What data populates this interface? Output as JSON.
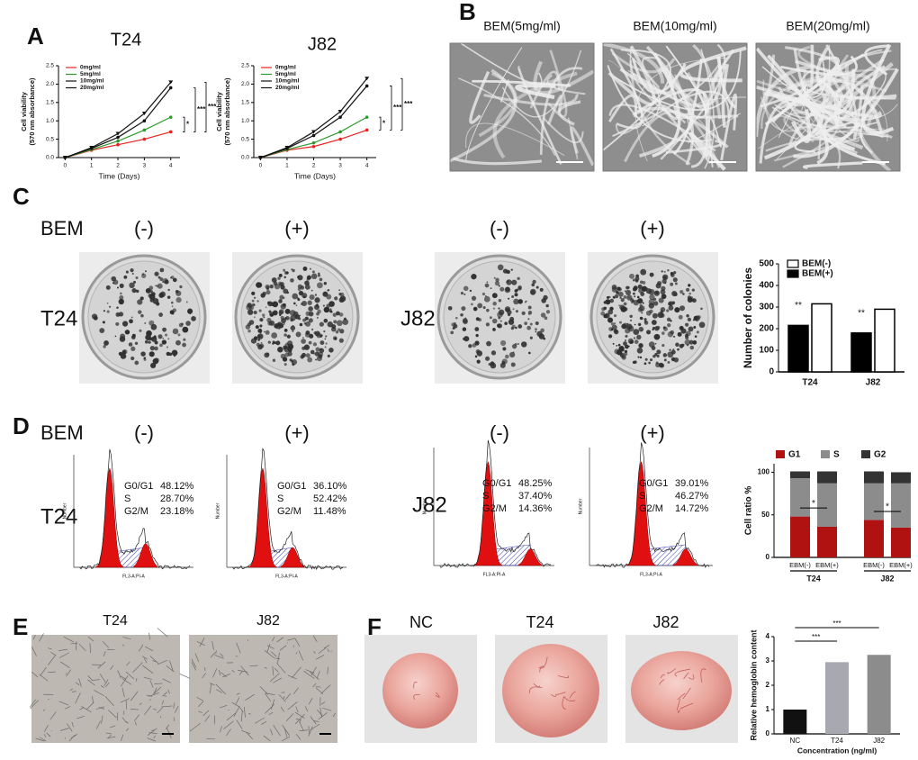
{
  "panels": {
    "letters": [
      "A",
      "B",
      "C",
      "D",
      "E",
      "F"
    ]
  },
  "sem": {
    "labels": [
      "BEM(5mg/ml)",
      "BEM(10mg/ml)",
      "BEM(20mg/ml)"
    ]
  },
  "colony": {
    "row_label": "BEM",
    "conditions": [
      "(-)",
      "(+)",
      "(-)",
      "(+)"
    ],
    "cell_lines": [
      "T24",
      "J82"
    ]
  },
  "flow": {
    "row_label": "BEM",
    "conditions": [
      "(-)",
      "(+)",
      "(-)",
      "(+)"
    ],
    "cell_lines": [
      "T24",
      "J82"
    ],
    "x_label": "FL3-A:PI-A",
    "y_label": "Number",
    "plots": [
      [
        [
          "G0/G1",
          "48.12%"
        ],
        [
          "S",
          "28.70%"
        ],
        [
          "G2/M",
          "23.18%"
        ]
      ],
      [
        [
          "G0/G1",
          "36.10%"
        ],
        [
          "S",
          "52.42%"
        ],
        [
          "G2/M",
          "11.48%"
        ]
      ],
      [
        [
          "G0/G1",
          "48.25%"
        ],
        [
          "S",
          "37.40%"
        ],
        [
          "G2/M",
          "14.36%"
        ]
      ],
      [
        [
          "G0/G1",
          "39.01%"
        ],
        [
          "S",
          "46.27%"
        ],
        [
          "G2/M",
          "14.72%"
        ]
      ]
    ]
  },
  "tube": {
    "labels": [
      "T24",
      "J82"
    ]
  },
  "tissue": {
    "labels": [
      "NC",
      "T24",
      "J82"
    ]
  },
  "chart_data": [
    {
      "type": "line",
      "title": "T24",
      "xlabel": "Time (Days)",
      "ylabel": [
        "Cell viability",
        "(570 nm absorbance)"
      ],
      "x": [
        0,
        1,
        2,
        3,
        4
      ],
      "xlim": [
        -0.25,
        4.35
      ],
      "xticks": [
        0,
        1,
        2,
        3,
        4
      ],
      "ylim": [
        0,
        2.5
      ],
      "yticks": [
        {
          "value": 0,
          "label": "0.0"
        },
        0.5,
        {
          "value": 1,
          "label": "1.0"
        },
        1.5,
        {
          "value": 2,
          "label": "2.0"
        },
        2.5
      ],
      "series": [
        {
          "name": "0mg/ml",
          "color": "#e8221d",
          "values": [
            0,
            0.2,
            0.35,
            0.5,
            0.7
          ]
        },
        {
          "name": "5mg/ml",
          "color": "#2e9a2e",
          "values": [
            0,
            0.22,
            0.45,
            0.75,
            1.1
          ]
        },
        {
          "name": "10mg/ml",
          "color": "#111111",
          "values": [
            0,
            0.25,
            0.55,
            1.0,
            1.9
          ]
        },
        {
          "name": "20mg/ml",
          "color": "#111111",
          "values": [
            0,
            0.27,
            0.65,
            1.2,
            2.05
          ]
        }
      ],
      "annotations": [
        "*",
        "***",
        "***"
      ]
    },
    {
      "type": "line",
      "title": "J82",
      "xlabel": "Time (Days)",
      "ylabel": [
        "Cell viability",
        "(570 nm absorbance)"
      ],
      "x": [
        0,
        1,
        2,
        3,
        4
      ],
      "xlim": [
        -0.25,
        4.35
      ],
      "xticks": [
        0,
        1,
        2,
        3,
        4
      ],
      "ylim": [
        0,
        2.5
      ],
      "yticks": [
        {
          "value": 0,
          "label": "0.0"
        },
        0.5,
        {
          "value": 1,
          "label": "1.0"
        },
        1.5,
        {
          "value": 2,
          "label": "2.0"
        },
        2.5
      ],
      "series": [
        {
          "name": "0mg/ml",
          "color": "#e8221d",
          "values": [
            0,
            0.2,
            0.3,
            0.5,
            0.75
          ]
        },
        {
          "name": "5mg/ml",
          "color": "#2e9a2e",
          "values": [
            0,
            0.22,
            0.4,
            0.7,
            1.1
          ]
        },
        {
          "name": "10mg/ml",
          "color": "#111111",
          "values": [
            0,
            0.25,
            0.6,
            1.1,
            1.95
          ]
        },
        {
          "name": "20mg/ml",
          "color": "#111111",
          "values": [
            0,
            0.27,
            0.7,
            1.25,
            2.15
          ]
        }
      ],
      "annotations": [
        "*",
        "***",
        "***"
      ]
    },
    {
      "type": "bar",
      "ylabel": "Number of colonies",
      "categories": [
        "T24",
        "J82"
      ],
      "ylim": [
        0,
        500
      ],
      "yticks": [
        0,
        100,
        200,
        300,
        400,
        500
      ],
      "series": [
        {
          "name": "BEM(-)",
          "color": "#ffffff",
          "values": [
            315,
            290
          ]
        },
        {
          "name": "BEM(+)",
          "color": "#000000",
          "values": [
            215,
            180
          ]
        }
      ],
      "annotations": [
        "**",
        "**"
      ]
    },
    {
      "type": "stacked_bar",
      "ylabel": "Cell ratio %",
      "categories": [
        "EBM(-)",
        "EBM(+)",
        "EBM(-)",
        "EBM(+)"
      ],
      "groups": [
        "T24",
        "J82"
      ],
      "ylim": [
        0,
        110
      ],
      "yticks": [
        0,
        50,
        100
      ],
      "series": [
        {
          "name": "G1",
          "color": "#b01212",
          "values": [
            48,
            36,
            44,
            35
          ]
        },
        {
          "name": "S",
          "color": "#8c8c8c",
          "values": [
            45,
            51,
            43,
            52
          ]
        },
        {
          "name": "G2",
          "color": "#333333",
          "values": [
            8,
            14,
            14,
            13
          ]
        }
      ],
      "annotations": [
        "*",
        "*"
      ]
    },
    {
      "type": "single_bar",
      "ylabel": "Relative hemoglobin content",
      "xlabel": "Concentration (ng/ml)",
      "categories": [
        "NC",
        "T24",
        "J82"
      ],
      "colors": [
        "#111111",
        "#a8a8b0",
        "#8c8c8c"
      ],
      "values": [
        1.0,
        2.95,
        3.25
      ],
      "ylim": [
        0,
        4
      ],
      "yticks": [
        0,
        1,
        2,
        3,
        4
      ],
      "annotations": [
        "***",
        "***"
      ]
    }
  ]
}
